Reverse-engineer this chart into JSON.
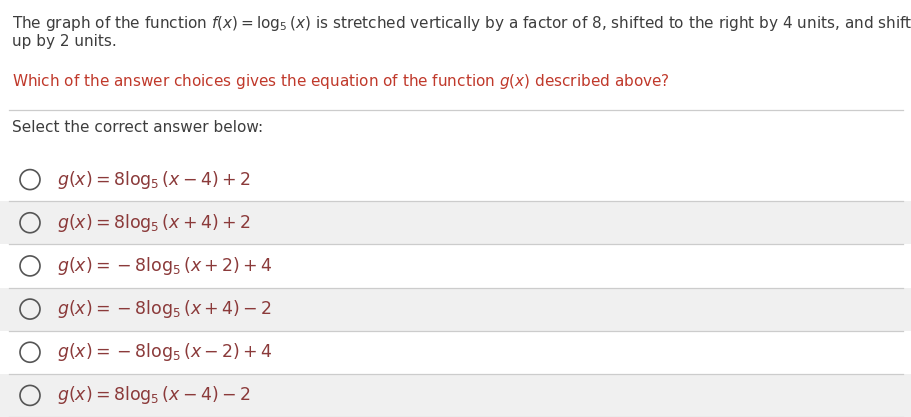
{
  "background_color": "#ffffff",
  "desc_line1": "The graph of the function $f(x) = \\log_5(x)$ is stretched vertically by a factor of 8, shifted to the right by 4 units, and shifted",
  "desc_line2": "up by 2 units.",
  "question_text": "Which of the answer choices gives the equation of the function $g(x)$ described above?",
  "select_text": "Select the correct answer below:",
  "choices": [
    "$g(x) = 8\\log_5(x-4)+2$",
    "$g(x) = 8\\log_5(x+4)+2$",
    "$g(x) = -8\\log_5(x+2)+4$",
    "$g(x) = -8\\log_5(x+4)-2$",
    "$g(x) = -8\\log_5(x-2)+4$",
    "$g(x) = 8\\log_5(x-4)-2$"
  ],
  "row_bg_colors": [
    "#ffffff",
    "#f0f0f0",
    "#ffffff",
    "#f0f0f0",
    "#ffffff",
    "#f0f0f0"
  ],
  "desc_color": "#3d3d3d",
  "question_color": "#c0392b",
  "select_color": "#3d3d3d",
  "choice_color": "#8b3a3a",
  "line_color": "#cccccc",
  "circle_color": "#555555",
  "font_size_desc": 11.0,
  "font_size_choice": 12.5,
  "fig_width": 9.12,
  "fig_height": 4.17,
  "dpi": 100
}
